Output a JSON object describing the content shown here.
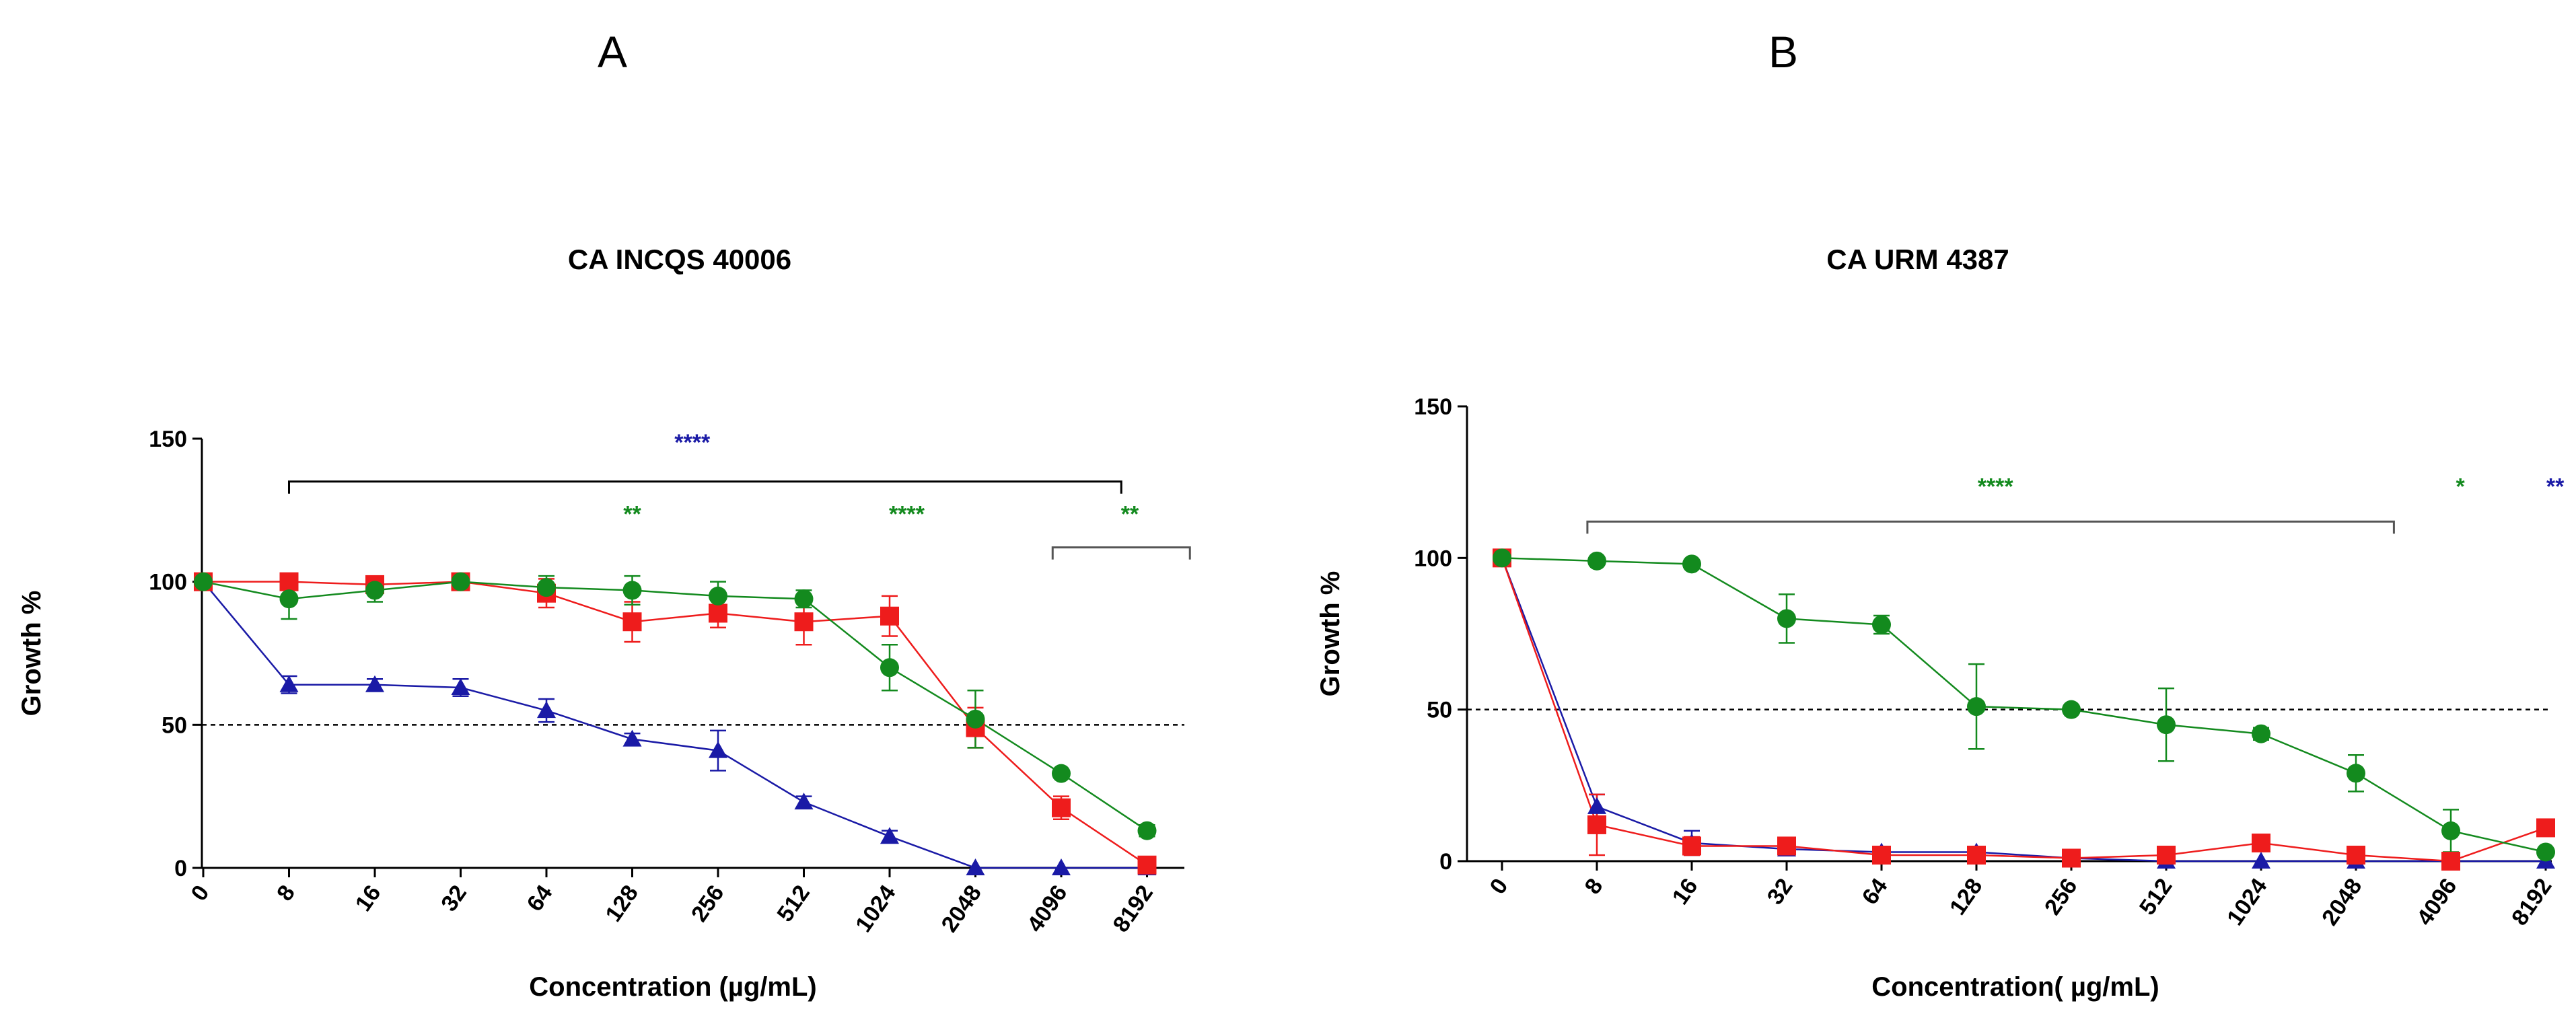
{
  "colors": {
    "blue": "#1a1aa6",
    "red": "#ee1c1c",
    "green": "#138a1e",
    "bracket": "#555555",
    "black": "#000000"
  },
  "chart_data": [
    {
      "panel": "A",
      "type": "line",
      "title": "CA INCQS 40006",
      "xlabel": "Concentration (µg/mL)",
      "ylabel": "Growth %",
      "categories": [
        "0",
        "8",
        "16",
        "32",
        "64",
        "128",
        "256",
        "512",
        "1024",
        "2048",
        "4096",
        "8192"
      ],
      "ylim": [
        0,
        150
      ],
      "yticks": [
        "0",
        "50",
        "100",
        "150"
      ],
      "reference_line": 50,
      "series": [
        {
          "color": "blue",
          "marker": "triangle",
          "values": [
            100,
            64,
            64,
            63,
            55,
            45,
            41,
            23,
            11,
            0,
            0,
            0
          ],
          "errors": [
            0,
            3,
            2,
            3,
            4,
            2,
            7,
            2,
            2,
            0,
            0,
            0
          ]
        },
        {
          "color": "red",
          "marker": "square",
          "values": [
            100,
            100,
            99,
            100,
            96,
            86,
            89,
            86,
            88,
            49,
            21,
            1
          ],
          "errors": [
            0,
            1,
            2,
            1,
            5,
            7,
            5,
            8,
            7,
            7,
            4,
            1
          ]
        },
        {
          "color": "green",
          "marker": "circle",
          "values": [
            100,
            94,
            97,
            100,
            98,
            97,
            95,
            94,
            70,
            52,
            33,
            13
          ],
          "errors": [
            0,
            7,
            4,
            1,
            4,
            5,
            5,
            3,
            8,
            10,
            1,
            2
          ]
        }
      ],
      "annotations": [
        {
          "text": "****",
          "color": "blue",
          "at_category": 5.7,
          "y": 146
        },
        {
          "text": "**",
          "color": "green",
          "at_category": 5,
          "y": 121
        },
        {
          "text": "****",
          "color": "green",
          "at_category": 8.2,
          "y": 121
        },
        {
          "text": "**",
          "color": "green",
          "at_category": 10.8,
          "y": 121
        }
      ],
      "brackets": [
        {
          "from": 1,
          "to": 10.7,
          "y": 135,
          "color": "black"
        },
        {
          "from": 9.9,
          "to": 11.5,
          "y": 112,
          "color": "bracket"
        }
      ]
    },
    {
      "panel": "B",
      "type": "line",
      "title": "CA URM 4387",
      "xlabel": "Concentration( µg/mL)",
      "ylabel": "Growth %",
      "categories": [
        "0",
        "8",
        "16",
        "32",
        "64",
        "128",
        "256",
        "512",
        "1024",
        "2048",
        "4096",
        "8192"
      ],
      "ylim": [
        0,
        150
      ],
      "yticks": [
        "0",
        "50",
        "100",
        "150"
      ],
      "reference_line": 50,
      "series": [
        {
          "color": "blue",
          "marker": "triangle",
          "values": [
            100,
            18,
            6,
            4,
            3,
            3,
            1,
            0,
            0,
            0,
            0,
            0
          ],
          "errors": [
            0,
            4,
            4,
            2,
            1,
            1,
            1,
            0,
            0,
            0,
            0,
            0
          ]
        },
        {
          "color": "red",
          "marker": "square",
          "values": [
            100,
            12,
            5,
            5,
            2,
            2,
            1,
            2,
            6,
            2,
            0,
            11
          ],
          "errors": [
            0,
            10,
            3,
            2,
            1,
            1,
            1,
            1,
            1,
            1,
            1,
            2
          ]
        },
        {
          "color": "green",
          "marker": "circle",
          "values": [
            100,
            99,
            98,
            80,
            78,
            51,
            50,
            45,
            42,
            29,
            10,
            3
          ],
          "errors": [
            0,
            1,
            1,
            8,
            3,
            14,
            1,
            12,
            2,
            6,
            7,
            1
          ]
        }
      ],
      "annotations": [
        {
          "text": "****",
          "color": "green",
          "at_category": 5.2,
          "y": 121
        },
        {
          "text": "*",
          "color": "green",
          "at_category": 10.1,
          "y": 121
        },
        {
          "text": "**",
          "color": "blue",
          "at_category": 11.1,
          "y": 121
        }
      ],
      "brackets": [
        {
          "from": 0.9,
          "to": 9.4,
          "y": 112,
          "color": "bracket"
        }
      ]
    }
  ]
}
